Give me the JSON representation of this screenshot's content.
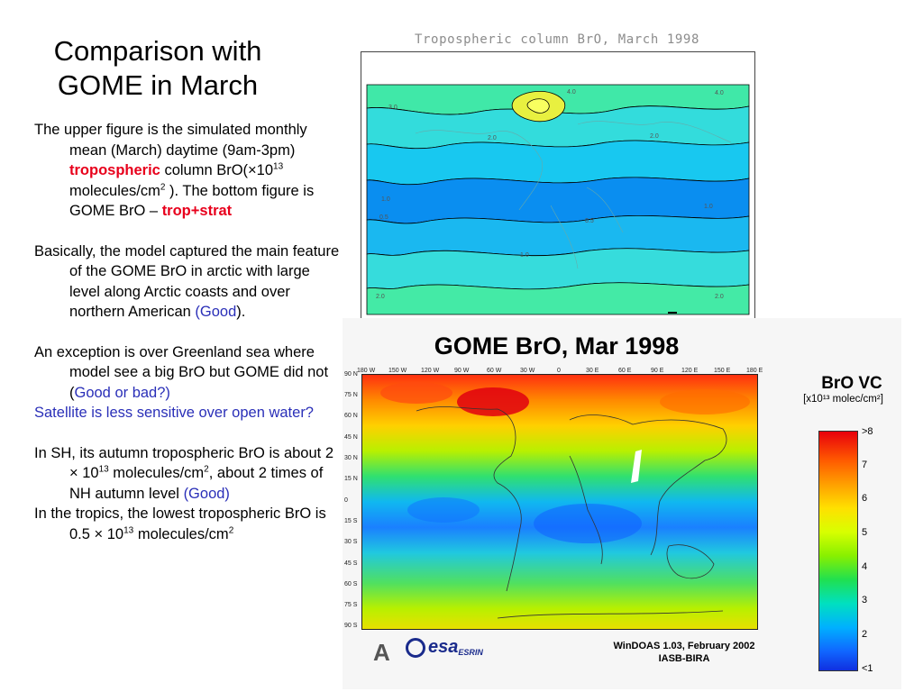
{
  "title": "Comparison with GOME in March",
  "paragraphs": {
    "p1": {
      "t1": "The upper figure is the simulated monthly mean (March) daytime (9am-3pm) ",
      "red1": "tropospheric",
      "t2": " column BrO(×10",
      "sup1": "13",
      "t3": " molecules/cm",
      "sup2": "2",
      "t4": " ). The bottom figure is GOME BrO – ",
      "red2": "trop+strat"
    },
    "p2": {
      "t1": "Basically, the model captured the main feature of the GOME BrO in arctic with large level along Arctic coasts and over northern American ",
      "blue": "(Good",
      "t2": ")."
    },
    "p3": {
      "t1": "An exception is over Greenland sea where model see a big BrO but GOME did not (",
      "blue": "Good or bad?)"
    },
    "p4": {
      "blue": "Satellite is less sensitive over open water?"
    },
    "p5": {
      "t1": "In SH, its autumn tropospheric BrO is about 2 × 10",
      "sup1": "13",
      "t2": " molecules/cm",
      "sup2": "2",
      "t3": ", about 2 times of NH autumn level ",
      "blue": "(Good)"
    },
    "p6": {
      "t1": "In the tropics, the lowest tropospheric BrO is 0.5 × 10",
      "sup1": "13",
      "t2": " molecules/cm",
      "sup2": "2"
    }
  },
  "top_figure": {
    "title": "Tropospheric column BrO, March 1998",
    "contour_labels": [
      "4.0",
      "3.0",
      "2.0",
      "1.0",
      "0.5",
      "1.0",
      "2.0",
      "2.0",
      "0.5",
      "1.0",
      "2.0",
      "4.0"
    ]
  },
  "bottom_figure": {
    "title": "GOME BrO, Mar 1998",
    "lon_labels": [
      "180 W",
      "150 W",
      "120 W",
      "90 W",
      "60 W",
      "30 W",
      "0",
      "30 E",
      "60 E",
      "90 E",
      "120 E",
      "150 E",
      "180 E"
    ],
    "lat_labels": [
      "90 N",
      "75 N",
      "60 N",
      "45 N",
      "30 N",
      "15 N",
      "0",
      "15 S",
      "30 S",
      "45 S",
      "60 S",
      "75 S",
      "90 S"
    ],
    "colorbar_title": "BrO VC",
    "colorbar_unit": "[x10¹³ molec/cm²]",
    "colorbar_labels": [
      ">8",
      "7",
      "6",
      "5",
      "4",
      "3",
      "2",
      "<1"
    ],
    "footer_line1": "WinDOAS 1.03, February 2002",
    "footer_line2": "IASB-BIRA",
    "logo_a": "A",
    "logo_esa": "esa",
    "logo_esrin": "ESRIN"
  }
}
